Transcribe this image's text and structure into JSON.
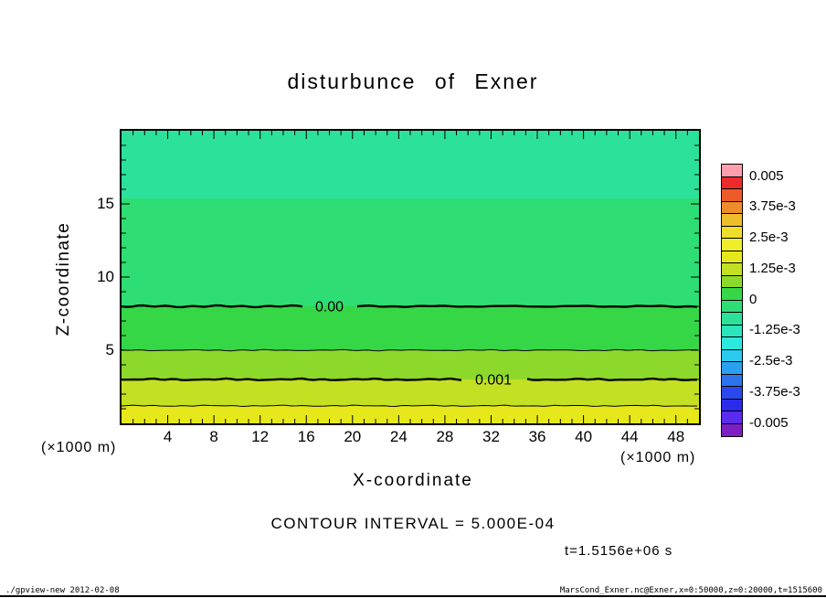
{
  "title": "disturbunce of Exner",
  "axes": {
    "x_label": "X-coordinate",
    "z_label": "Z-coordinate",
    "x_unit_left": "(×1000 m)",
    "x_unit_right": "(×1000 m)"
  },
  "annotations": {
    "contour_interval": "CONTOUR INTERVAL = 5.000E-04",
    "time": "t=1.5156e+06 s"
  },
  "footer": {
    "left": "./gpview-new  2012-02-08",
    "right": "MarsCond_Exner.nc@Exner,x=0:50000,z=0:20000,t=1515600"
  },
  "chart_data": {
    "type": "heatmap",
    "title": "disturbunce of Exner",
    "xlabel": "X-coordinate",
    "ylabel": "Z-coordinate",
    "x_unit": "×1000 m",
    "z_unit": "×1000 m",
    "xlim": [
      0,
      50
    ],
    "zlim": [
      0,
      20
    ],
    "x_ticks": [
      4,
      8,
      12,
      16,
      20,
      24,
      28,
      32,
      36,
      40,
      44,
      48
    ],
    "x_minor_tick_step": 1,
    "z_ticks": [
      5,
      10,
      15
    ],
    "z_minor_tick_step": 1,
    "contour_interval": 0.0005,
    "time_seconds": 1515600,
    "fill_bands": [
      {
        "z_from": 15.4,
        "z_to": 20.0,
        "value_range": "-0.001 to -0.0005",
        "color": "#2ce29b"
      },
      {
        "z_from": 8.0,
        "z_to": 15.4,
        "value_range": "-0.0005 to 0",
        "color": "#2edd74"
      },
      {
        "z_from": 5.0,
        "z_to": 8.0,
        "value_range": "0 to 0.0005",
        "color": "#35d747"
      },
      {
        "z_from": 3.0,
        "z_to": 5.0,
        "value_range": "0.0005 to 0.001",
        "color": "#8cd82b"
      },
      {
        "z_from": 1.2,
        "z_to": 3.0,
        "value_range": "0.001 to 0.0015",
        "color": "#c3e023"
      },
      {
        "z_from": 0.0,
        "z_to": 1.2,
        "value_range": "0.0015 to 0.002",
        "color": "#e6e81c"
      }
    ],
    "contour_lines": [
      {
        "z": 8.0,
        "value": 0.0,
        "label": "0.00",
        "label_x": 18.0,
        "thick": true
      },
      {
        "z": 5.0,
        "value": 0.0005,
        "label": "",
        "label_x": 0,
        "thick": false
      },
      {
        "z": 3.0,
        "value": 0.001,
        "label": "0.001",
        "label_x": 32.2,
        "thick": true
      },
      {
        "z": 1.2,
        "value": 0.0015,
        "label": "",
        "label_x": 0,
        "thick": false
      }
    ],
    "colorbar": {
      "labels": [
        "0.005",
        "3.75e-3",
        "2.5e-3",
        "1.25e-3",
        "0",
        "-1.25e-3",
        "-2.5e-3",
        "-3.75e-3",
        "-0.005"
      ],
      "cells_top_to_bottom": [
        "#ff9fae",
        "#ee2b2b",
        "#ee5b2b",
        "#ee8c2b",
        "#eebd2b",
        "#eedd2b",
        "#eeee2b",
        "#e6e81c",
        "#c3e023",
        "#8cd82b",
        "#35d747",
        "#2edd74",
        "#2ce29b",
        "#2be5bd",
        "#2beadd",
        "#2bcbee",
        "#2ba0ee",
        "#2b74ee",
        "#2b48ee",
        "#2b2bee",
        "#5b2bee",
        "#7d1fc4"
      ]
    }
  }
}
